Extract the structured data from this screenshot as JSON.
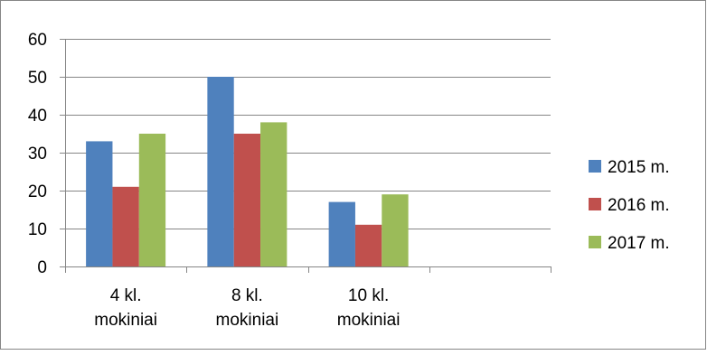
{
  "chart_data": {
    "type": "bar",
    "categories": [
      [
        "4 kl.",
        "mokiniai"
      ],
      [
        "8 kl.",
        "mokiniai"
      ],
      [
        "10 kl.",
        "mokiniai"
      ],
      [
        "",
        ""
      ]
    ],
    "series": [
      {
        "name": "2015 m.",
        "color": "#4f81bd",
        "values": [
          33,
          50,
          17,
          null
        ]
      },
      {
        "name": "2016 m.",
        "color": "#c0504d",
        "values": [
          21,
          35,
          11,
          null
        ]
      },
      {
        "name": "2017 m.",
        "color": "#9bbb59",
        "values": [
          35,
          38,
          19,
          null
        ]
      }
    ],
    "ylim": [
      0,
      60
    ],
    "yticks": [
      0,
      10,
      20,
      30,
      40,
      50,
      60
    ],
    "grid": true,
    "legend": "right"
  }
}
